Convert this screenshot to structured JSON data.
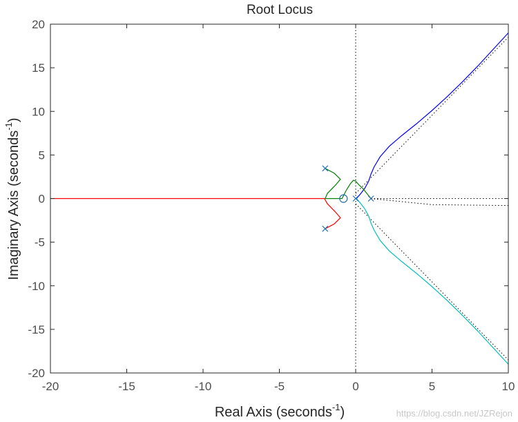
{
  "chart_data": {
    "type": "line",
    "title": "Root Locus",
    "xlabel": "Real Axis (seconds",
    "ylabel": "Imaginary Axis (seconds",
    "unit_exponent": "-1",
    "xlim": [
      -20,
      10
    ],
    "ylim": [
      -20,
      20
    ],
    "xticks": [
      "-20",
      "-15",
      "-10",
      "-5",
      "0",
      "5",
      "10"
    ],
    "yticks": [
      "20",
      "15",
      "10",
      "5",
      "0",
      "-5",
      "-10",
      "-15",
      "-20"
    ],
    "grid": false,
    "poles": [
      [
        -2,
        3.46
      ],
      [
        -2,
        -3.46
      ],
      [
        0,
        0
      ],
      [
        1,
        0
      ]
    ],
    "zeros": [
      [
        -0.8,
        0
      ]
    ],
    "series": [
      {
        "color": "#0000ff",
        "x": [
          0.05,
          0.3,
          0.6,
          0.85,
          1.0,
          1.2,
          1.6,
          2.2,
          3.0,
          4.0,
          5.0,
          6.0,
          7.0,
          8.0,
          9.0,
          10.0
        ],
        "y": [
          0.0,
          0.5,
          1.2,
          2.0,
          2.8,
          3.6,
          4.8,
          6.0,
          7.2,
          8.6,
          10.1,
          11.7,
          13.4,
          15.2,
          17.1,
          19.0
        ]
      },
      {
        "color": "#00bfbf",
        "x": [
          0.05,
          0.3,
          0.6,
          0.85,
          1.0,
          1.2,
          1.6,
          2.2,
          3.0,
          4.0,
          5.0,
          6.0,
          7.0,
          8.0,
          9.0,
          10.0
        ],
        "y": [
          0.0,
          -0.5,
          -1.2,
          -2.0,
          -2.8,
          -3.6,
          -4.8,
          -6.0,
          -7.2,
          -8.6,
          -10.1,
          -11.7,
          -13.4,
          -15.2,
          -17.1,
          -19.0
        ]
      },
      {
        "color": "#008000",
        "x": [
          -2.0,
          -1.4,
          -1.0,
          -1.35,
          -1.85,
          -2.0,
          -1.6,
          -1.2,
          -0.9,
          -0.6,
          -0.35,
          -0.15,
          0.0,
          0.2,
          0.5,
          0.75,
          1.0
        ],
        "y": [
          3.46,
          2.9,
          2.2,
          1.5,
          0.6,
          0.0,
          0.0,
          0.0,
          0.0,
          1.0,
          1.7,
          2.1,
          2.0,
          1.6,
          1.1,
          0.55,
          0.0
        ]
      },
      {
        "color": "#ff0000",
        "x": [
          -2.0,
          -1.4,
          -1.0,
          -1.35,
          -1.85,
          -2.05,
          -3.0,
          -6.0,
          -10.0,
          -15.0,
          -20.0
        ],
        "y": [
          -3.46,
          -2.9,
          -2.2,
          -1.5,
          -0.6,
          0.0,
          0.0,
          0.0,
          0.0,
          0.0,
          0.0
        ]
      }
    ],
    "asymptotes": [
      {
        "x": [
          0,
          10
        ],
        "y": [
          0.6,
          18.5
        ]
      },
      {
        "x": [
          0,
          10
        ],
        "y": [
          -0.6,
          -18.5
        ]
      },
      {
        "x": [
          0,
          0
        ],
        "y": [
          -20,
          20
        ]
      },
      {
        "x": [
          1.0,
          5.0,
          10.0
        ],
        "y": [
          0.0,
          -0.7,
          -0.8
        ]
      },
      {
        "x": [
          1.0,
          10.0
        ],
        "y": [
          0.0,
          0.0
        ]
      }
    ]
  },
  "watermark": "https://blog.csdn.net/JZRejon"
}
